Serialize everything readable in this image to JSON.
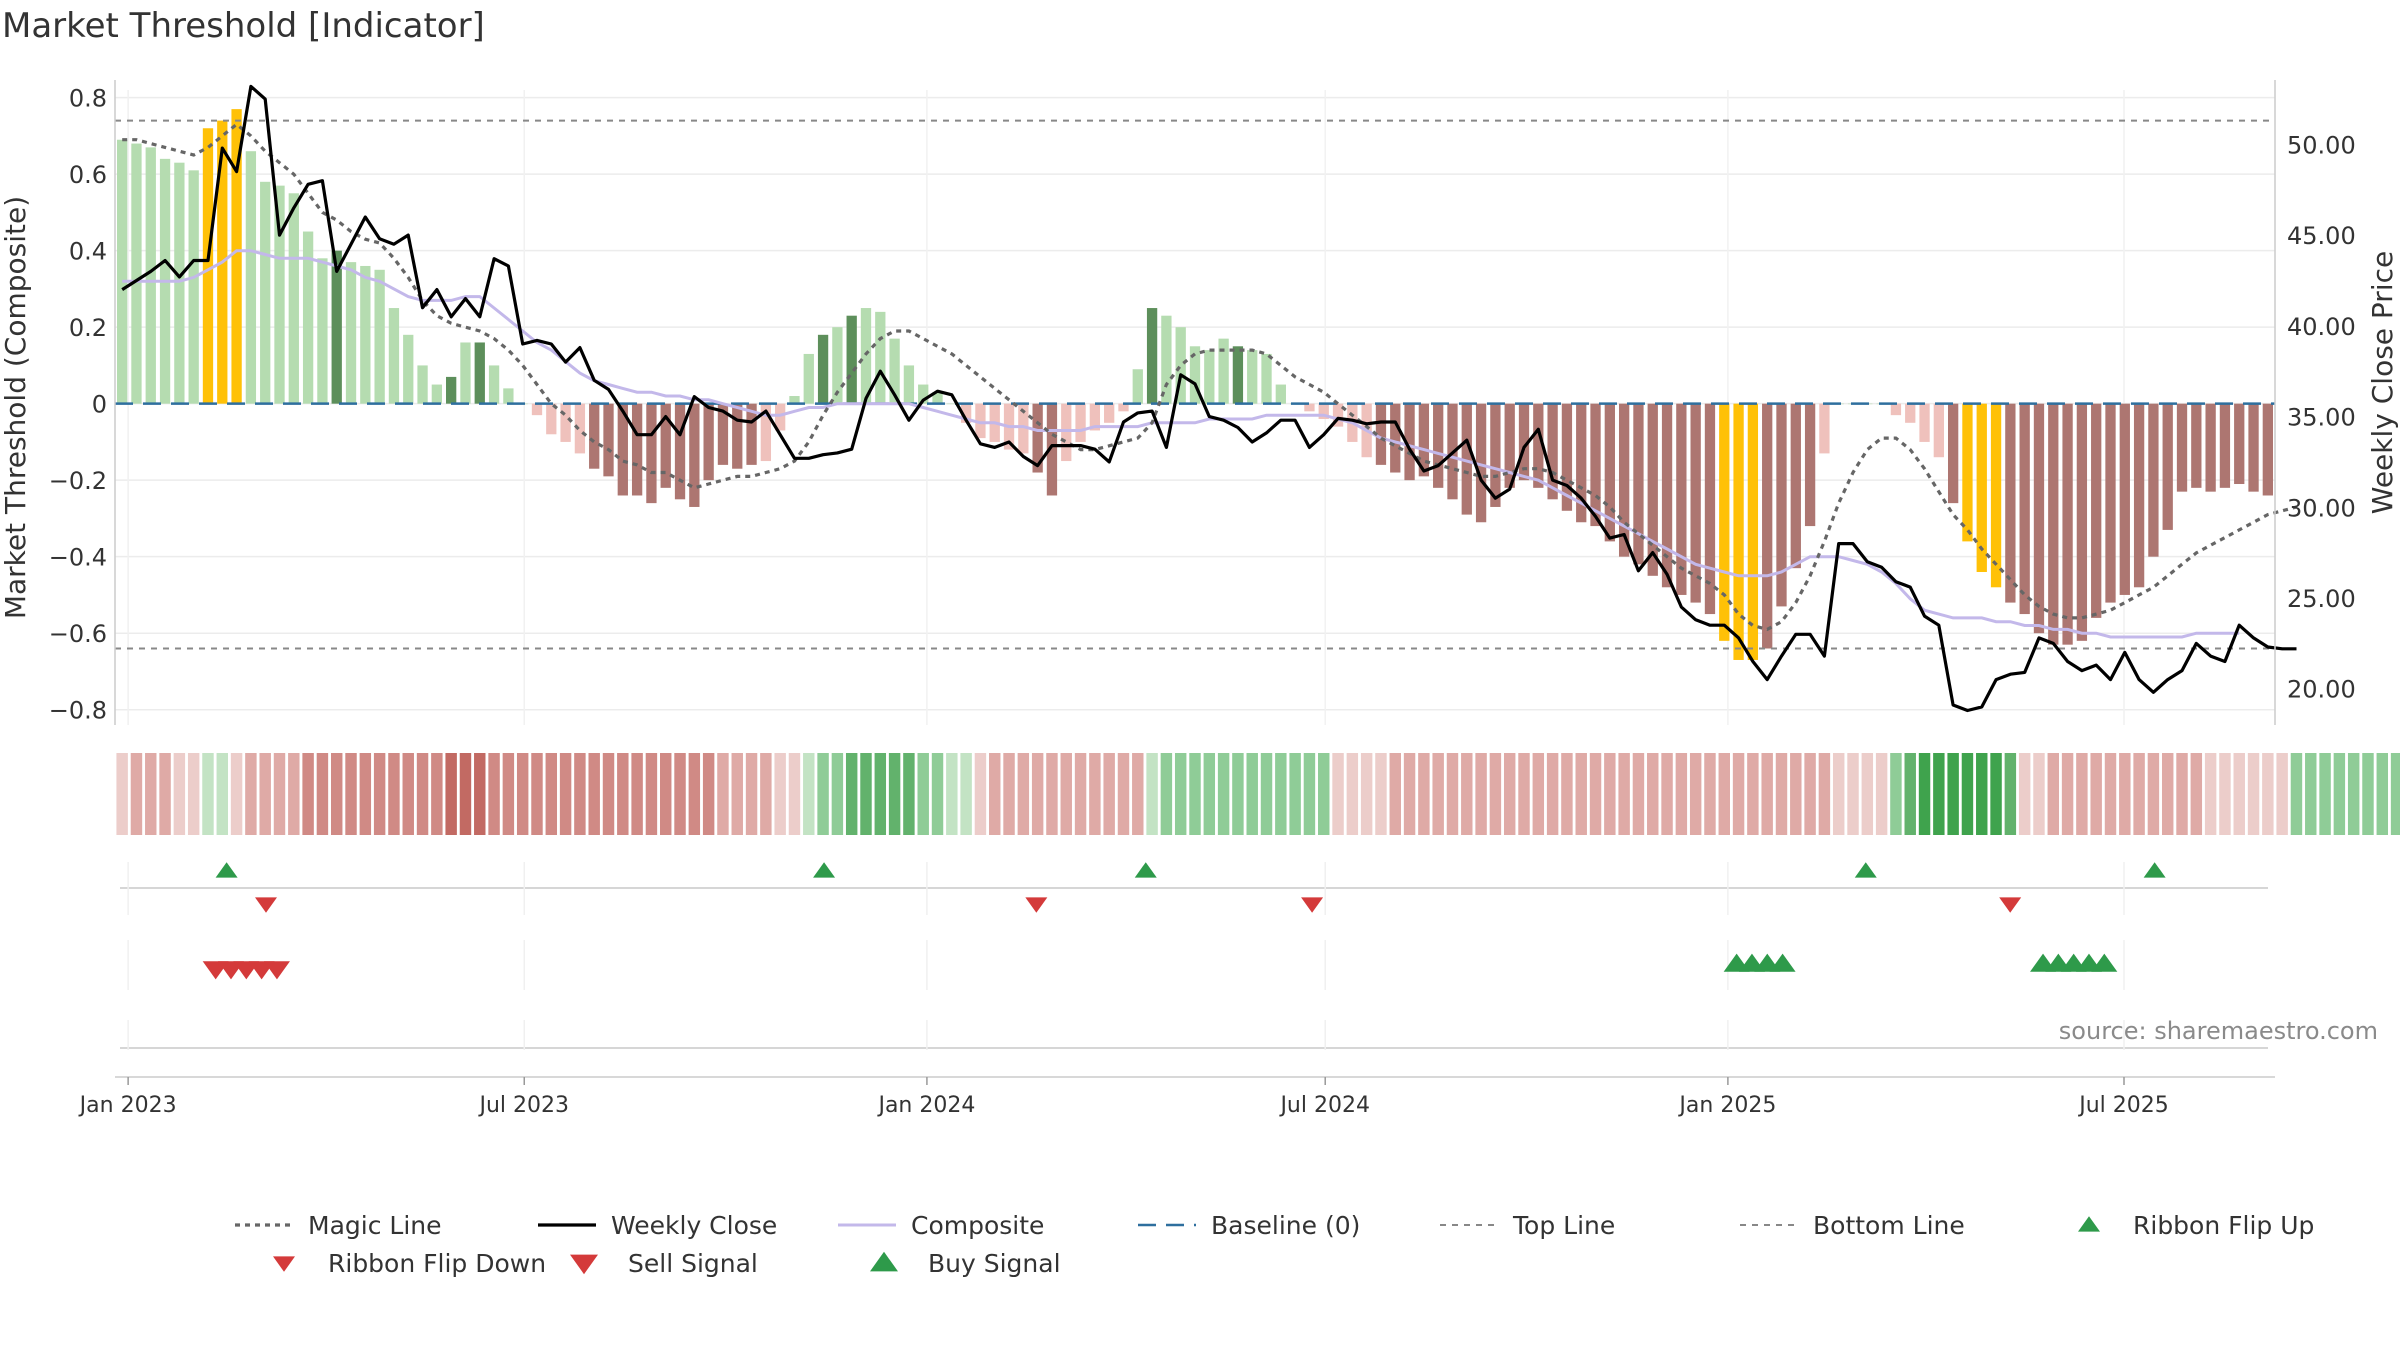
{
  "chart_data": {
    "type": "bar",
    "title": "Market Threshold [Indicator]",
    "ylabel_left": "Market Threshold (Composite)",
    "ylabel_right": "Weekly Close Price",
    "source": "source: sharemaestro.com",
    "x_start": "2022-12-26",
    "x_end": "2025-09-08",
    "x_ticks": [
      {
        "date": "2023-01-01",
        "label": "Jan 2023"
      },
      {
        "date": "2023-07-01",
        "label": "Jul 2023"
      },
      {
        "date": "2024-01-01",
        "label": "Jan 2024"
      },
      {
        "date": "2024-07-01",
        "label": "Jul 2024"
      },
      {
        "date": "2025-01-01",
        "label": "Jan 2025"
      },
      {
        "date": "2025-07-01",
        "label": "Jul 2025"
      }
    ],
    "y_left": {
      "range": [
        -0.84,
        0.82
      ],
      "ticks": [
        -0.8,
        -0.6,
        -0.4,
        -0.2,
        0,
        0.2,
        0.4,
        0.6,
        0.8
      ],
      "labels": [
        "−0.8",
        "−0.6",
        "−0.4",
        "−0.2",
        "0",
        "0.2",
        "0.4",
        "0.6",
        "0.8"
      ]
    },
    "y_right": {
      "range": [
        18,
        53
      ],
      "ticks": [
        20,
        25,
        30,
        35,
        40,
        45,
        50
      ],
      "labels": [
        "20.00",
        "25.00",
        "30.00",
        "35.00",
        "40.00",
        "45.00",
        "50.00"
      ]
    },
    "top_line": 0.74,
    "bottom_line": -0.64,
    "baseline": 0,
    "colors": {
      "pos_light": "#b5dcb0",
      "pos_dark": "#5d8f5b",
      "neg_light": "#efc1bc",
      "neg_dark": "#ad7671",
      "extreme": "#ffc107",
      "close": "#000000",
      "composite": "#c3b8ea",
      "magic": "#666666",
      "baseline": "#2e6f9e",
      "buy": "#2e9a4a",
      "sell": "#d43a3a"
    },
    "composite_bars": [
      0.69,
      0.68,
      0.67,
      0.64,
      0.63,
      0.61,
      0.72,
      0.74,
      0.77,
      0.66,
      0.58,
      0.57,
      0.55,
      0.45,
      0.38,
      0.4,
      0.37,
      0.36,
      0.35,
      0.25,
      0.18,
      0.1,
      0.05,
      0.07,
      0.16,
      0.16,
      0.1,
      0.04,
      0.0,
      -0.03,
      -0.08,
      -0.1,
      -0.13,
      -0.17,
      -0.19,
      -0.24,
      -0.24,
      -0.26,
      -0.22,
      -0.25,
      -0.27,
      -0.2,
      -0.16,
      -0.17,
      -0.16,
      -0.15,
      -0.07,
      0.02,
      0.13,
      0.18,
      0.2,
      0.23,
      0.25,
      0.24,
      0.17,
      0.1,
      0.05,
      0.03,
      0.0,
      -0.05,
      -0.09,
      -0.1,
      -0.12,
      -0.13,
      -0.18,
      -0.24,
      -0.15,
      -0.1,
      -0.07,
      -0.05,
      -0.02,
      0.09,
      0.25,
      0.23,
      0.2,
      0.15,
      0.14,
      0.17,
      0.15,
      0.14,
      0.13,
      0.05,
      0.0,
      -0.02,
      -0.04,
      -0.06,
      -0.1,
      -0.14,
      -0.16,
      -0.18,
      -0.2,
      -0.19,
      -0.22,
      -0.25,
      -0.29,
      -0.31,
      -0.27,
      -0.22,
      -0.2,
      -0.22,
      -0.25,
      -0.28,
      -0.31,
      -0.32,
      -0.36,
      -0.4,
      -0.42,
      -0.45,
      -0.48,
      -0.5,
      -0.52,
      -0.55,
      -0.62,
      -0.67,
      -0.67,
      -0.64,
      -0.53,
      -0.43,
      -0.32,
      -0.13,
      0.0,
      0.0,
      0.0,
      0.0,
      -0.03,
      -0.05,
      -0.1,
      -0.14,
      -0.26,
      -0.36,
      -0.44,
      -0.48,
      -0.52,
      -0.55,
      -0.6,
      -0.63,
      -0.63,
      -0.62,
      -0.56,
      -0.52,
      -0.5,
      -0.48,
      -0.4,
      -0.33,
      -0.23,
      -0.22,
      -0.23,
      -0.22,
      -0.21,
      -0.23,
      -0.24
    ],
    "extreme_bars": [
      6,
      7,
      8,
      112,
      113,
      114,
      129,
      130,
      131
    ],
    "dark_bars": [
      15,
      23,
      25,
      49,
      51,
      72,
      78
    ],
    "weekly_close": [
      42.0,
      42.5,
      43.0,
      43.6,
      42.7,
      43.6,
      43.6,
      49.8,
      48.5,
      53.2,
      52.5,
      45.0,
      46.5,
      47.8,
      48.0,
      43.0,
      44.5,
      46.0,
      44.8,
      44.5,
      45.0,
      41.0,
      42.0,
      40.5,
      41.5,
      40.5,
      43.7,
      43.3,
      39.0,
      39.2,
      39.0,
      38.0,
      38.8,
      37.0,
      36.5,
      35.3,
      34.0,
      34.0,
      35.0,
      34.0,
      36.1,
      35.5,
      35.3,
      34.8,
      34.7,
      35.3,
      34.0,
      32.7,
      32.7,
      32.9,
      33.0,
      33.2,
      36.0,
      37.5,
      36.2,
      34.8,
      35.9,
      36.4,
      36.2,
      34.8,
      33.5,
      33.3,
      33.6,
      32.8,
      32.3,
      33.4,
      33.4,
      33.4,
      33.2,
      32.5,
      34.7,
      35.2,
      35.3,
      33.3,
      37.3,
      36.8,
      35.0,
      34.8,
      34.4,
      33.6,
      34.1,
      34.8,
      34.8,
      33.3,
      34.0,
      34.9,
      34.8,
      34.6,
      34.7,
      34.7,
      33.2,
      32.0,
      32.3,
      33.0,
      33.7,
      31.5,
      30.5,
      31.0,
      33.3,
      34.3,
      31.5,
      31.2,
      30.5,
      29.5,
      28.3,
      28.5,
      26.5,
      27.5,
      26.3,
      24.5,
      23.8,
      23.5,
      23.5,
      22.8,
      21.5,
      20.5,
      21.8,
      23.0,
      23.0,
      21.8,
      28.0,
      28.0,
      27.0,
      26.7,
      25.9,
      25.6,
      24.0,
      23.5,
      19.1,
      18.8,
      19.0,
      20.5,
      20.8,
      20.9,
      22.8,
      22.5,
      21.5,
      21.0,
      21.3,
      20.5,
      22.0,
      20.5,
      19.8,
      20.5,
      21.0,
      22.5,
      21.8,
      21.5,
      23.5,
      22.8,
      22.3,
      22.2,
      22.2
    ],
    "composite_line": [
      0.32,
      0.32,
      0.32,
      0.32,
      0.32,
      0.33,
      0.35,
      0.37,
      0.4,
      0.4,
      0.39,
      0.38,
      0.38,
      0.38,
      0.37,
      0.36,
      0.35,
      0.33,
      0.32,
      0.3,
      0.28,
      0.27,
      0.27,
      0.27,
      0.28,
      0.28,
      0.25,
      0.22,
      0.19,
      0.16,
      0.14,
      0.11,
      0.08,
      0.06,
      0.05,
      0.04,
      0.03,
      0.03,
      0.02,
      0.02,
      0.01,
      0.01,
      0.0,
      -0.01,
      -0.02,
      -0.03,
      -0.03,
      -0.02,
      -0.01,
      -0.01,
      0.0,
      0.0,
      0.0,
      0.0,
      0.0,
      0.0,
      -0.01,
      -0.02,
      -0.03,
      -0.04,
      -0.05,
      -0.05,
      -0.06,
      -0.06,
      -0.07,
      -0.07,
      -0.07,
      -0.07,
      -0.06,
      -0.06,
      -0.06,
      -0.06,
      -0.05,
      -0.05,
      -0.05,
      -0.05,
      -0.04,
      -0.04,
      -0.04,
      -0.04,
      -0.03,
      -0.03,
      -0.03,
      -0.03,
      -0.03,
      -0.04,
      -0.05,
      -0.07,
      -0.09,
      -0.1,
      -0.11,
      -0.12,
      -0.13,
      -0.14,
      -0.15,
      -0.16,
      -0.17,
      -0.18,
      -0.19,
      -0.2,
      -0.22,
      -0.24,
      -0.26,
      -0.28,
      -0.3,
      -0.32,
      -0.34,
      -0.36,
      -0.38,
      -0.4,
      -0.42,
      -0.43,
      -0.44,
      -0.45,
      -0.45,
      -0.45,
      -0.44,
      -0.42,
      -0.4,
      -0.4,
      -0.4,
      -0.41,
      -0.42,
      -0.44,
      -0.47,
      -0.51,
      -0.54,
      -0.55,
      -0.56,
      -0.56,
      -0.56,
      -0.57,
      -0.57,
      -0.58,
      -0.58,
      -0.59,
      -0.59,
      -0.6,
      -0.6,
      -0.61,
      -0.61,
      -0.61,
      -0.61,
      -0.61,
      -0.61,
      -0.6,
      -0.6,
      -0.6,
      -0.6
    ],
    "magic_line": [
      0.69,
      0.69,
      0.68,
      0.67,
      0.66,
      0.65,
      0.67,
      0.7,
      0.73,
      0.7,
      0.66,
      0.63,
      0.6,
      0.55,
      0.5,
      0.48,
      0.45,
      0.43,
      0.42,
      0.38,
      0.33,
      0.27,
      0.23,
      0.21,
      0.2,
      0.19,
      0.17,
      0.14,
      0.1,
      0.05,
      0.0,
      -0.03,
      -0.07,
      -0.1,
      -0.12,
      -0.15,
      -0.16,
      -0.18,
      -0.18,
      -0.2,
      -0.22,
      -0.21,
      -0.2,
      -0.19,
      -0.19,
      -0.18,
      -0.17,
      -0.15,
      -0.1,
      -0.03,
      0.03,
      0.08,
      0.13,
      0.17,
      0.19,
      0.19,
      0.17,
      0.15,
      0.13,
      0.1,
      0.07,
      0.04,
      0.01,
      -0.02,
      -0.05,
      -0.08,
      -0.1,
      -0.12,
      -0.12,
      -0.11,
      -0.1,
      -0.09,
      -0.05,
      0.05,
      0.1,
      0.13,
      0.14,
      0.14,
      0.14,
      0.14,
      0.13,
      0.1,
      0.07,
      0.05,
      0.03,
      0.0,
      -0.03,
      -0.06,
      -0.09,
      -0.11,
      -0.13,
      -0.15,
      -0.16,
      -0.17,
      -0.18,
      -0.19,
      -0.19,
      -0.18,
      -0.17,
      -0.17,
      -0.18,
      -0.2,
      -0.22,
      -0.24,
      -0.27,
      -0.31,
      -0.34,
      -0.37,
      -0.4,
      -0.43,
      -0.45,
      -0.47,
      -0.5,
      -0.55,
      -0.58,
      -0.59,
      -0.57,
      -0.52,
      -0.45,
      -0.36,
      -0.26,
      -0.18,
      -0.12,
      -0.09,
      -0.09,
      -0.12,
      -0.17,
      -0.23,
      -0.29,
      -0.33,
      -0.38,
      -0.42,
      -0.46,
      -0.5,
      -0.53,
      -0.55,
      -0.56,
      -0.56,
      -0.55,
      -0.54,
      -0.52,
      -0.5,
      -0.48,
      -0.45,
      -0.42,
      -0.39,
      -0.37,
      -0.35,
      -0.33,
      -0.31,
      -0.29,
      -0.28,
      -0.27
    ],
    "ribbon": [
      -1,
      -2,
      -2,
      -2,
      -1,
      -1,
      1,
      1,
      -1,
      -2,
      -2,
      -2,
      -2,
      -3,
      -3,
      -3,
      -3,
      -3,
      -3,
      -3,
      -3,
      -3,
      -3,
      -4,
      -4,
      -4,
      -3,
      -3,
      -3,
      -3,
      -3,
      -3,
      -3,
      -3,
      -3,
      -3,
      -3,
      -3,
      -3,
      -3,
      -3,
      -3,
      -2,
      -2,
      -2,
      -2,
      -1,
      -1,
      1,
      2,
      2,
      3,
      3,
      3,
      3,
      3,
      2,
      2,
      1,
      1,
      -1,
      -2,
      -2,
      -2,
      -2,
      -2,
      -2,
      -2,
      -2,
      -2,
      -2,
      -2,
      1,
      2,
      2,
      2,
      2,
      2,
      2,
      2,
      2,
      2,
      2,
      2,
      2,
      -1,
      -1,
      -1,
      -1,
      -2,
      -2,
      -2,
      -2,
      -2,
      -2,
      -2,
      -2,
      -2,
      -2,
      -2,
      -2,
      -2,
      -2,
      -2,
      -2,
      -2,
      -2,
      -2,
      -2,
      -2,
      -2,
      -2,
      -2,
      -2,
      -2,
      -2,
      -2,
      -2,
      -2,
      -2,
      -1,
      -1,
      -1,
      -1,
      2,
      3,
      4,
      4,
      4,
      4,
      4,
      4,
      3,
      -1,
      -1,
      -2,
      -2,
      -2,
      -2,
      -2,
      -2,
      -2,
      -2,
      -2,
      -2,
      -2,
      -1,
      -1,
      -1,
      -1,
      -1,
      -1,
      2,
      2,
      2,
      2,
      2,
      2,
      2,
      2
    ],
    "ribbon_flip_up": [
      "2023-02-15",
      "2023-11-15",
      "2024-04-10",
      "2025-03-05",
      "2025-07-15"
    ],
    "ribbon_flip_down": [
      "2023-03-05",
      "2024-02-20",
      "2024-06-25",
      "2025-05-10"
    ],
    "sell_signals": [
      "2023-02-10",
      "2023-02-17",
      "2023-02-24",
      "2023-03-03",
      "2023-03-10"
    ],
    "buy_signals": [
      "2025-01-05",
      "2025-01-12",
      "2025-01-19",
      "2025-01-26",
      "2025-05-25",
      "2025-06-01",
      "2025-06-08",
      "2025-06-15",
      "2025-06-22"
    ],
    "legend": [
      {
        "label": "Magic Line",
        "key": "magic"
      },
      {
        "label": "Weekly Close",
        "key": "close"
      },
      {
        "label": "Composite",
        "key": "composite"
      },
      {
        "label": "Baseline (0)",
        "key": "baseline"
      },
      {
        "label": "Top Line",
        "key": "top"
      },
      {
        "label": "Bottom Line",
        "key": "bottom"
      },
      {
        "label": "Ribbon Flip Up",
        "key": "flip_up"
      },
      {
        "label": "Ribbon Flip Down",
        "key": "flip_down"
      },
      {
        "label": "Sell Signal",
        "key": "sell"
      },
      {
        "label": "Buy Signal",
        "key": "buy"
      }
    ],
    "legend_position": "bottom",
    "grid": true
  }
}
